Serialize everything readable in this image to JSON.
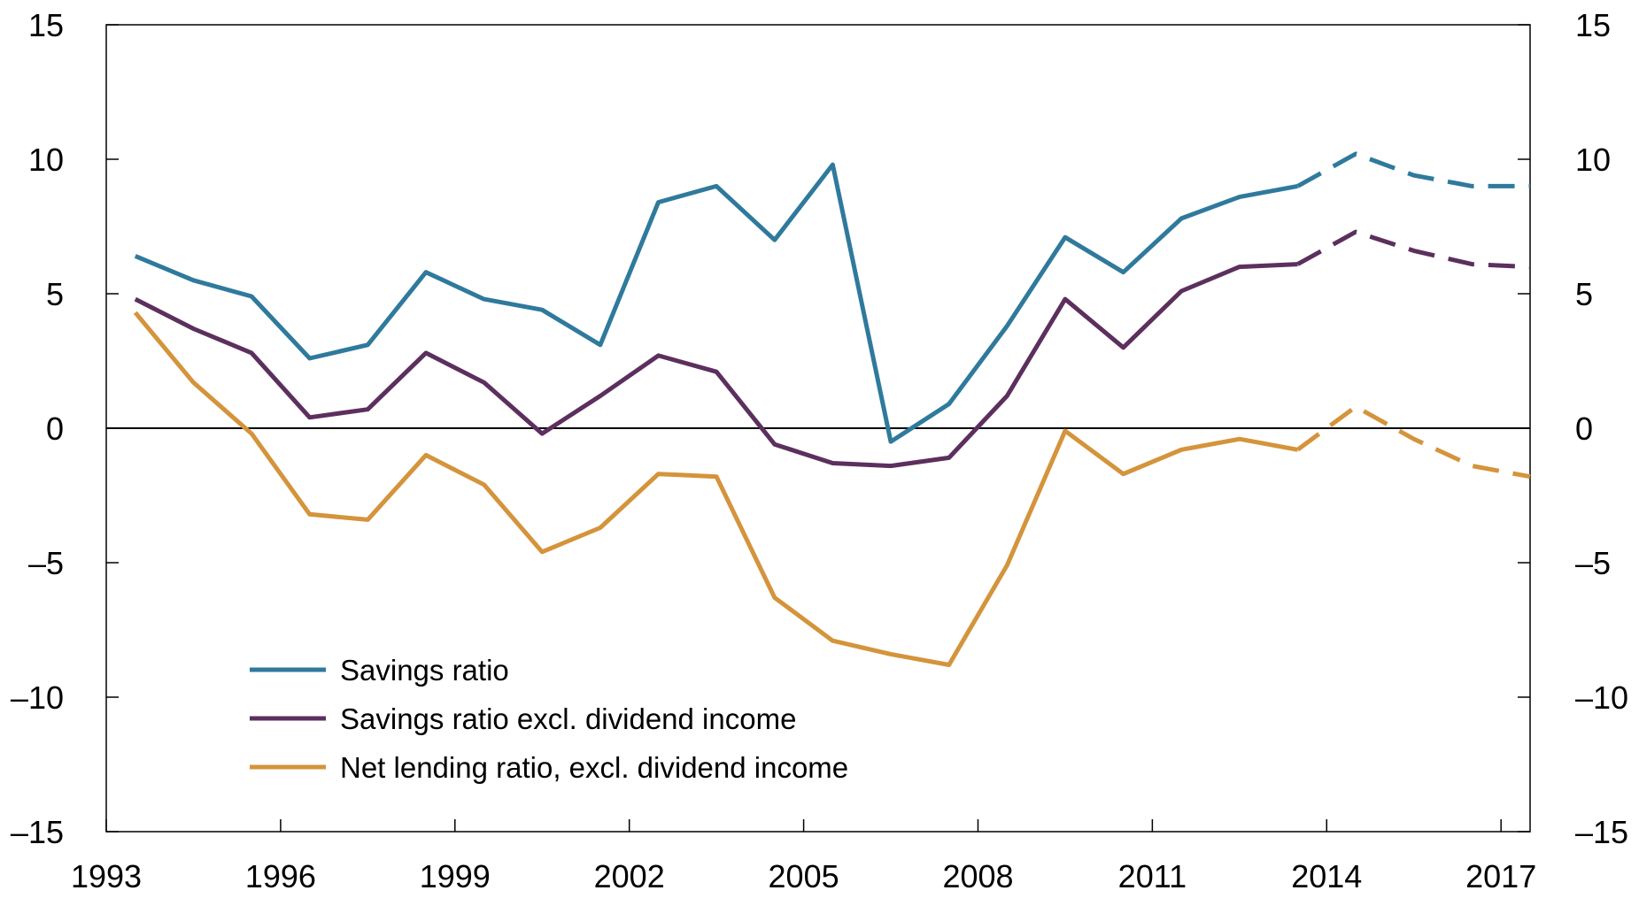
{
  "chart_data": {
    "type": "line",
    "title": "",
    "xlabel": "",
    "ylabel": "",
    "xlim": [
      1993,
      2017.5
    ],
    "ylim": [
      -15,
      15
    ],
    "x_ticks": [
      "1993",
      "1996",
      "1999",
      "2002",
      "2005",
      "2008",
      "2011",
      "2014",
      "2017"
    ],
    "y_ticks_left": [
      "15",
      "10",
      "5",
      "0",
      "–5",
      "–10",
      "–15"
    ],
    "y_ticks_right": [
      "15",
      "10",
      "5",
      "0",
      "–5",
      "–10",
      "–15"
    ],
    "y_tick_values": [
      15,
      10,
      5,
      0,
      -5,
      -10,
      -15
    ],
    "grid": false,
    "zero_line": true,
    "legend_position": "bottom-left",
    "projection_from": 2014,
    "x": [
      1993.5,
      1994.5,
      1995.5,
      1996.5,
      1997.5,
      1998.5,
      1999.5,
      2000.5,
      2001.5,
      2002.5,
      2003.5,
      2004.5,
      2005.5,
      2006.5,
      2007.5,
      2008.5,
      2009.5,
      2010.5,
      2011.5,
      2012.5,
      2013.5,
      2014.5,
      2015.5,
      2016.5,
      2017.5
    ],
    "series": [
      {
        "name": "Savings ratio",
        "color": "#2f7a9c",
        "values": [
          6.4,
          5.5,
          4.9,
          2.6,
          3.1,
          5.8,
          4.8,
          4.4,
          3.1,
          8.4,
          9.0,
          7.0,
          9.8,
          -0.5,
          0.9,
          3.8,
          7.1,
          5.8,
          7.8,
          8.6,
          9.0,
          10.2,
          9.4,
          9.0,
          9.0
        ]
      },
      {
        "name": "Savings ratio excl. dividend income",
        "color": "#5c2f5e",
        "values": [
          4.8,
          3.7,
          2.8,
          0.4,
          0.7,
          2.8,
          1.7,
          -0.2,
          1.2,
          2.7,
          2.1,
          -0.6,
          -1.3,
          -1.4,
          -1.1,
          1.2,
          4.8,
          3.0,
          5.1,
          6.0,
          6.1,
          7.3,
          6.6,
          6.1,
          6.0
        ]
      },
      {
        "name": "Net lending ratio, excl. dividend income",
        "color": "#d4943c",
        "values": [
          4.3,
          1.7,
          -0.2,
          -3.2,
          -3.4,
          -1.0,
          -2.1,
          -4.6,
          -3.7,
          -1.7,
          -1.8,
          -6.3,
          -7.9,
          -8.4,
          -8.8,
          -5.1,
          -0.1,
          -1.7,
          -0.8,
          -0.4,
          -0.8,
          0.8,
          -0.4,
          -1.4,
          -1.8
        ]
      }
    ]
  }
}
